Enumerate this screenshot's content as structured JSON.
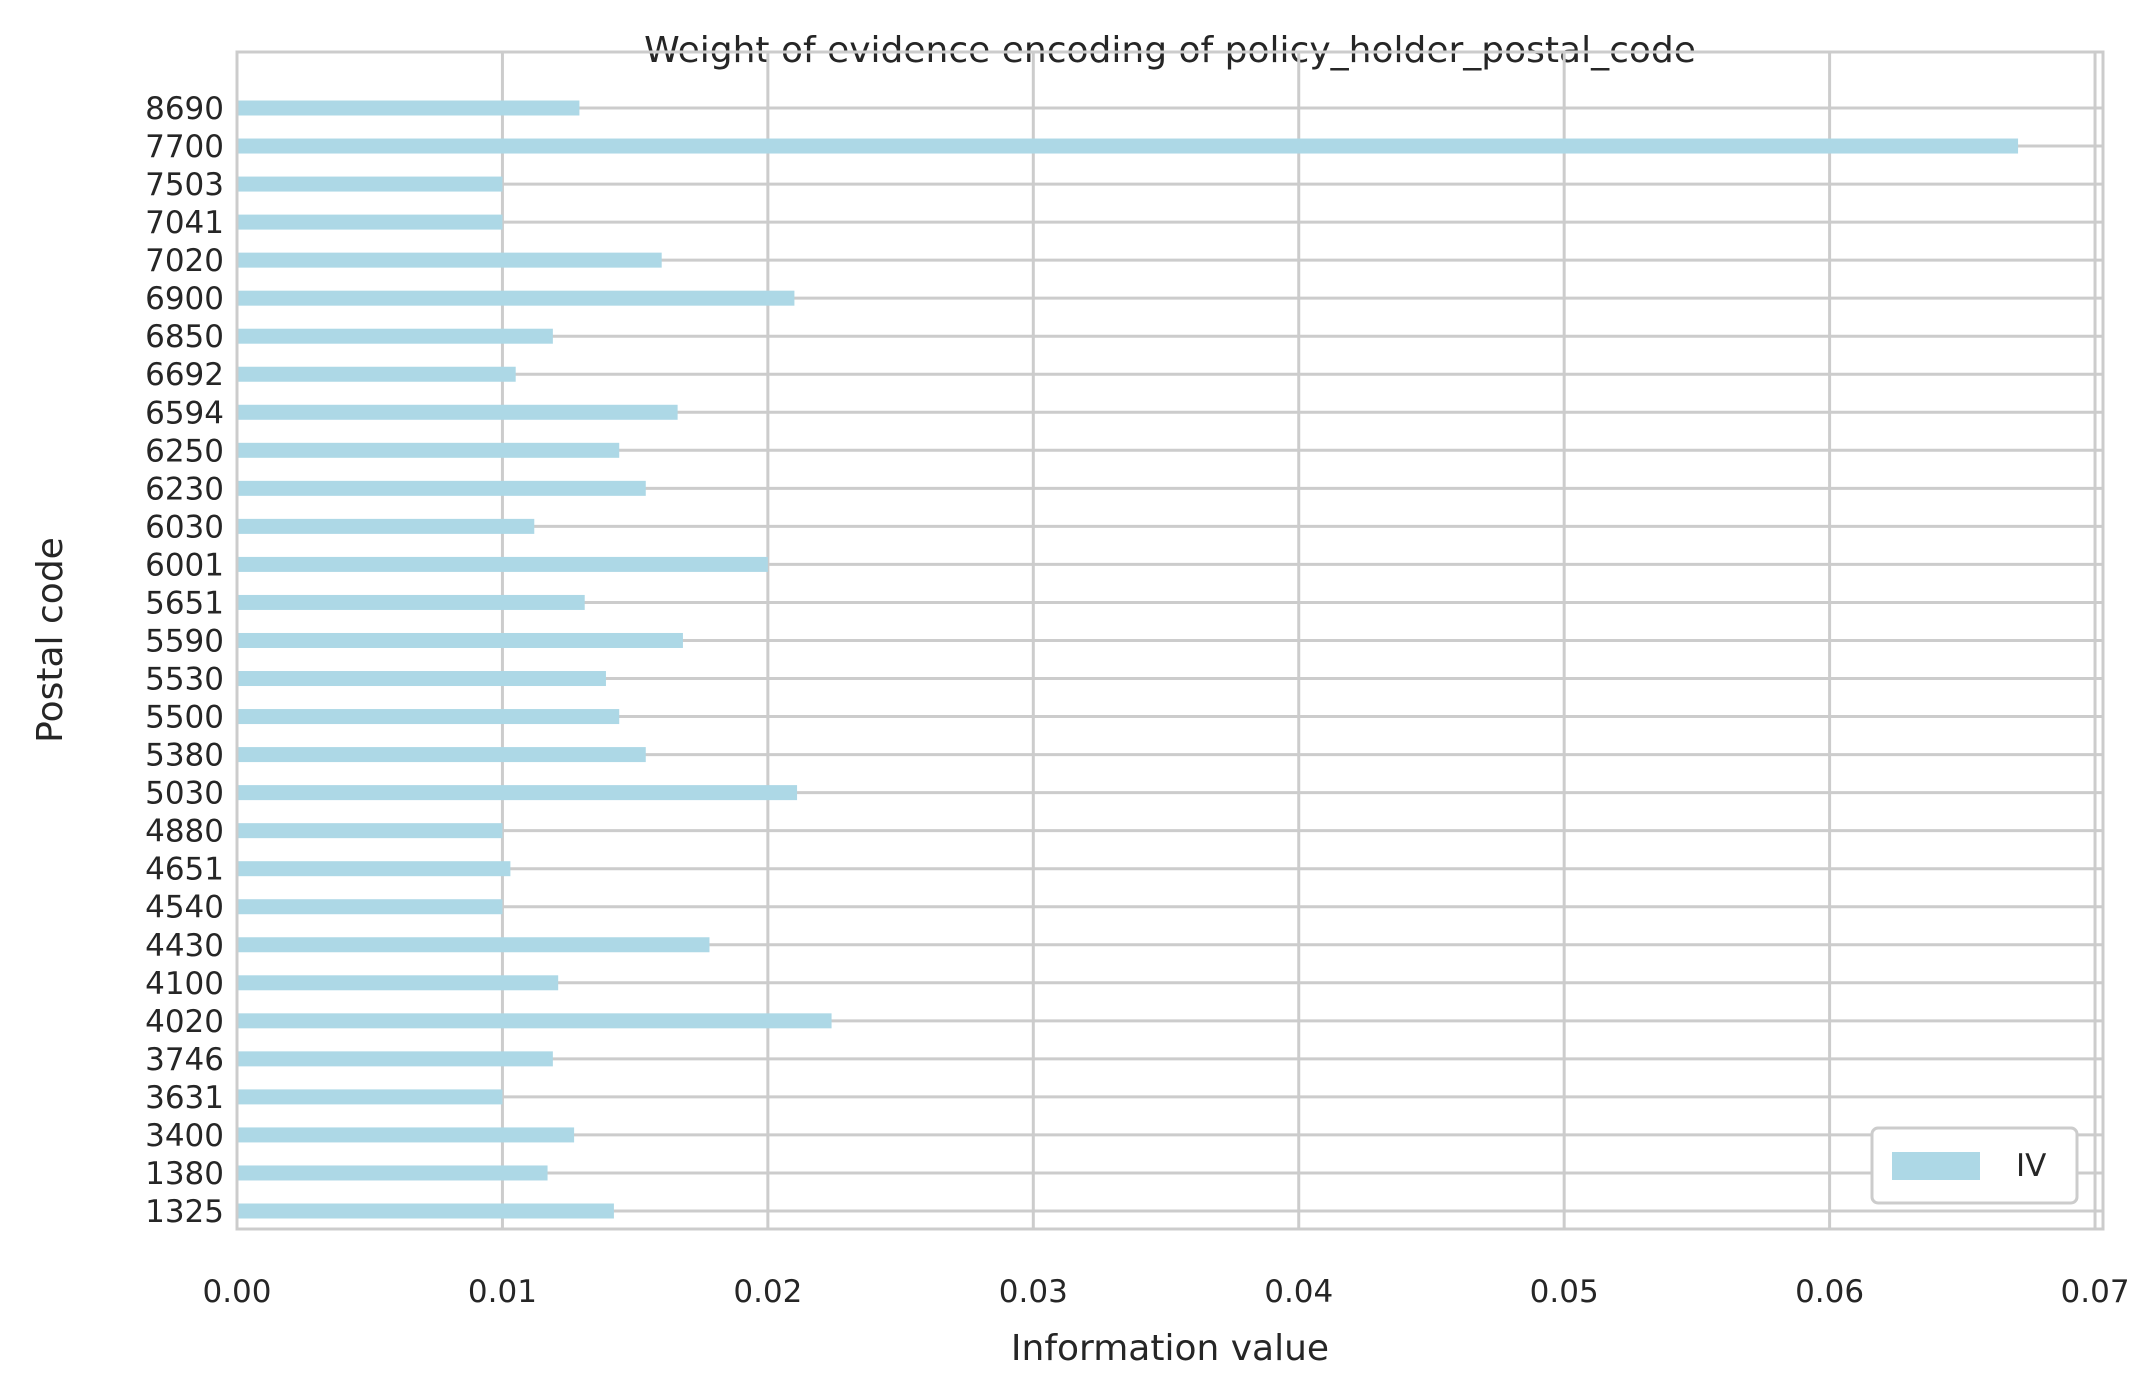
{
  "chart_data": {
    "type": "bar",
    "orientation": "horizontal",
    "title": "Weight of evidence encoding of policy_holder_postal_code",
    "xlabel": "Information value",
    "ylabel": "Postal code",
    "xlim": [
      0,
      0.0703
    ],
    "xticks": [
      "0.00",
      "0.01",
      "0.02",
      "0.03",
      "0.04",
      "0.05",
      "0.06",
      "0.07"
    ],
    "xtick_values": [
      0,
      0.01,
      0.02,
      0.03,
      0.04,
      0.05,
      0.06,
      0.07
    ],
    "grid": true,
    "legend_position": "lower-right",
    "bar_color": "#add8e6",
    "categories": [
      "1325",
      "1380",
      "3400",
      "3631",
      "3746",
      "4020",
      "4100",
      "4430",
      "4540",
      "4651",
      "4880",
      "5030",
      "5380",
      "5500",
      "5530",
      "5590",
      "5651",
      "6001",
      "6030",
      "6230",
      "6250",
      "6594",
      "6692",
      "6850",
      "6900",
      "7020",
      "7041",
      "7503",
      "7700",
      "8690"
    ],
    "series": [
      {
        "name": "IV",
        "values": [
          0.0142,
          0.0117,
          0.0127,
          0.01,
          0.0119,
          0.0224,
          0.0121,
          0.0178,
          0.01,
          0.0103,
          0.01,
          0.0211,
          0.0154,
          0.0144,
          0.0139,
          0.0168,
          0.0131,
          0.02,
          0.0112,
          0.0154,
          0.0144,
          0.0166,
          0.0105,
          0.0119,
          0.021,
          0.016,
          0.01,
          0.01,
          0.0671,
          0.0129
        ]
      }
    ]
  }
}
